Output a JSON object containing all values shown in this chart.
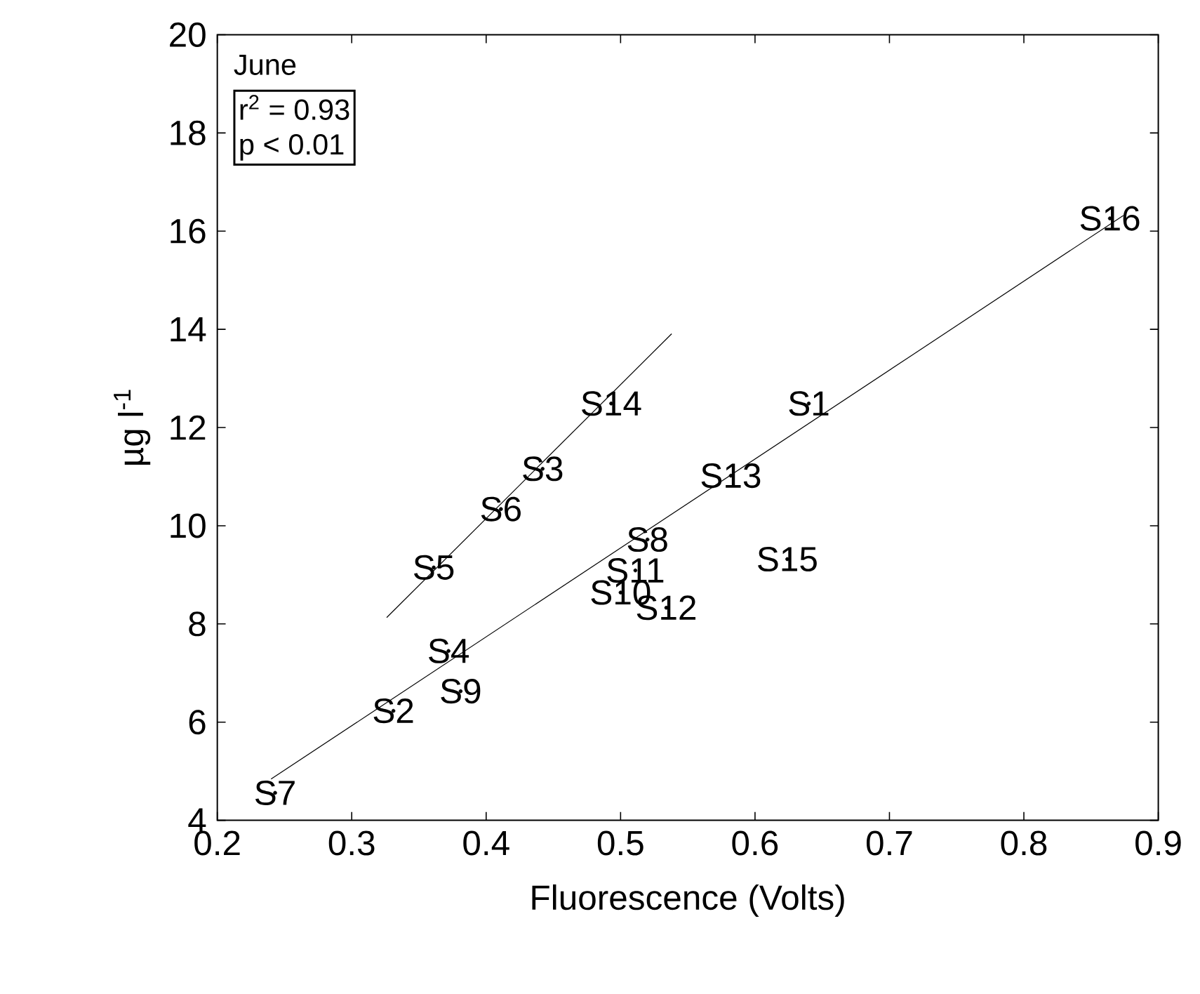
{
  "chart_data": {
    "type": "scatter",
    "xlabel": "Fluorescence (Volts)",
    "ylabel": "µg l$^{-1}$",
    "annotations": [
      "June",
      "r$^{2}$ = 0.93",
      "p < 0.01"
    ],
    "xlim": [
      0.2,
      0.9
    ],
    "ylim": [
      4,
      20
    ],
    "xticks": [
      0.2,
      0.3,
      0.4,
      0.5,
      0.6,
      0.7,
      0.8,
      0.9
    ],
    "yticks": [
      4,
      6,
      8,
      10,
      12,
      14,
      16,
      18,
      20
    ],
    "series": [
      {
        "color": "#000000",
        "x": [
          0.64,
          0.331,
          0.442,
          0.372,
          0.361,
          0.411,
          0.243,
          0.52,
          0.381,
          0.5,
          0.511,
          0.534,
          0.582,
          0.493,
          0.624,
          0.864
        ],
        "values": [
          12.49,
          6.23,
          11.16,
          7.45,
          9.15,
          10.34,
          4.56,
          9.72,
          6.63,
          8.64,
          9.09,
          8.33,
          11.02,
          12.49,
          9.32,
          16.26
        ],
        "value_labels": [
          "S1",
          "S2",
          "S3",
          "S4",
          "S5",
          "S6",
          "S7",
          "S8",
          "S9",
          "S10",
          "S11",
          "S12",
          "S13",
          "S14",
          "S15",
          "S16"
        ]
      },
      {
        "type": "line",
        "color": "#000000",
        "line_style": "solid",
        "x": [
          0.24,
          0.874
        ],
        "values": [
          4.84,
          16.32
        ]
      },
      {
        "type": "line",
        "color": "#000000",
        "line_style": "solid",
        "x": [
          0.326,
          0.538
        ],
        "values": [
          8.13,
          13.91
        ]
      }
    ]
  }
}
